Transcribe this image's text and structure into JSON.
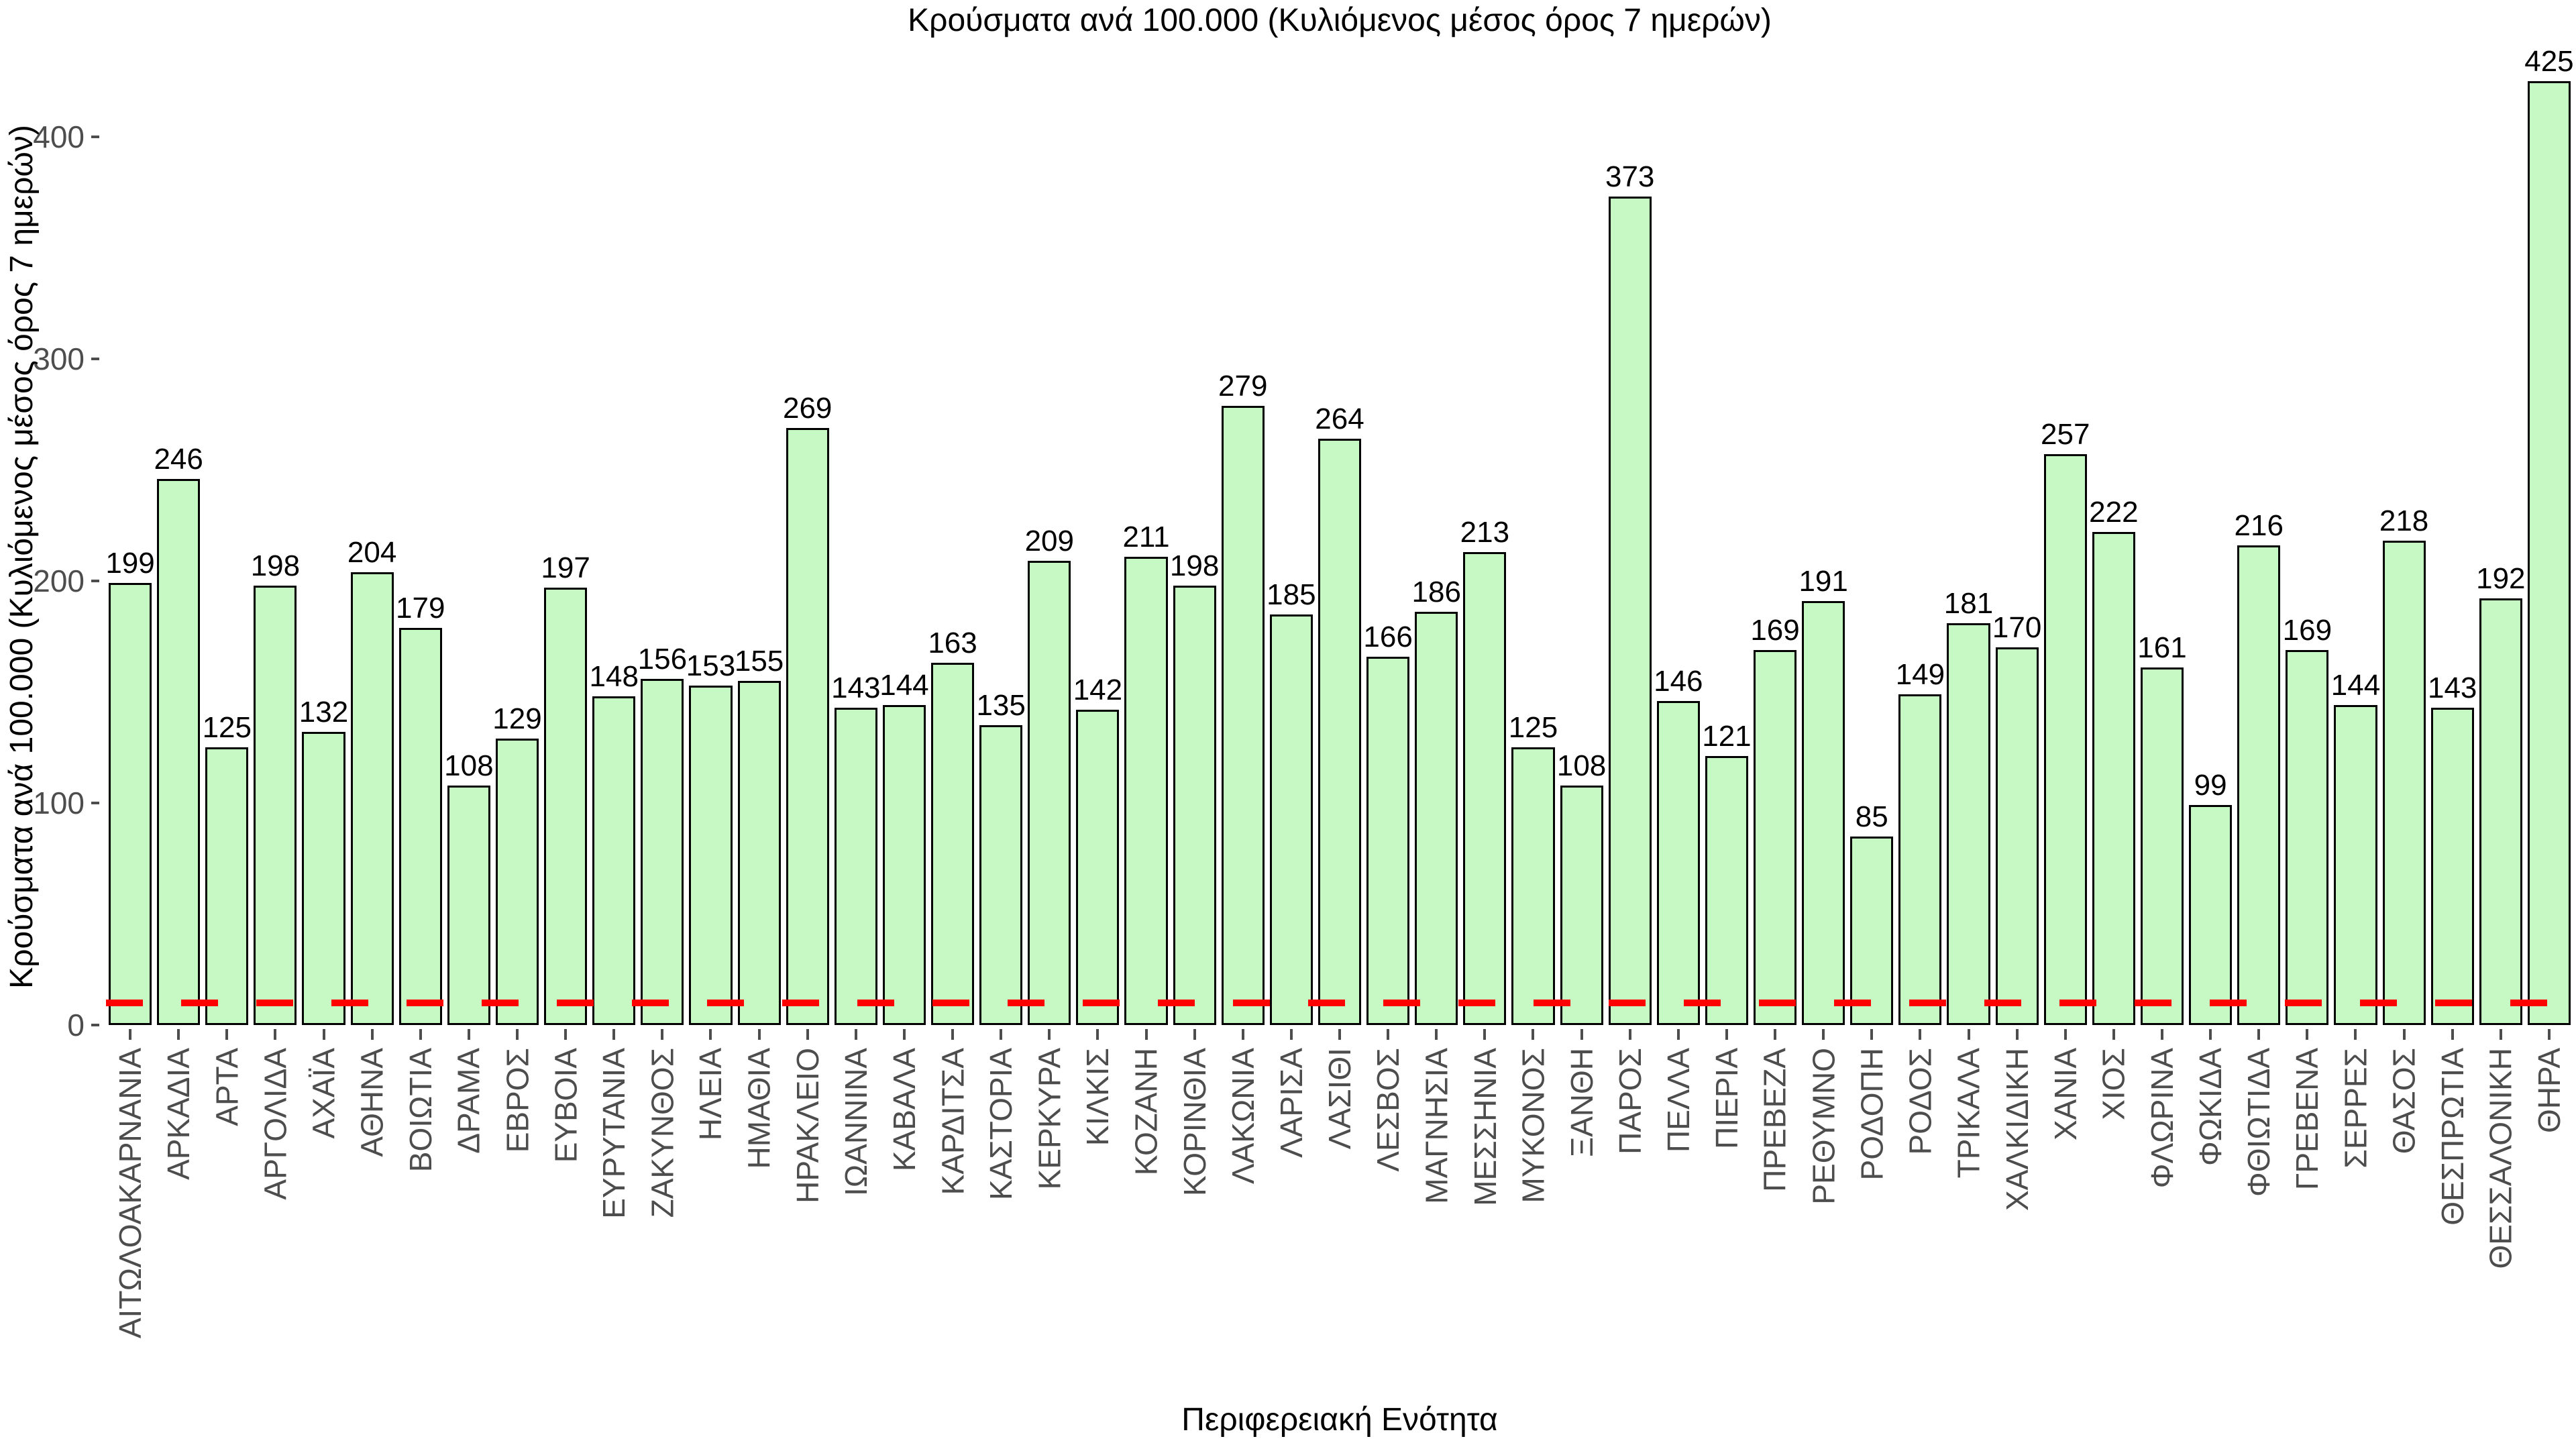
{
  "chart_data": {
    "type": "bar",
    "title": "Κρούσματα ανά 100.000 (Κυλιόμενος μέσος όρος 7 ημερών)",
    "xlabel": "Περιφερειακή Ενότητα",
    "ylabel": "Κρούσματα ανά 100.000 (Κυλιόμενος μέσος όρος 7 ημερών)",
    "categories": [
      "ΑΙΤΩΛΟΑΚΑΡΝΑΝΙΑ",
      "ΑΡΚΑΔΙΑ",
      "ΑΡΤΑ",
      "ΑΡΓΟΛΙΔΑ",
      "ΑΧΑΪΑ",
      "ΑΘΗΝΑ",
      "ΒΟΙΩΤΙΑ",
      "ΔΡΑΜΑ",
      "ΕΒΡΟΣ",
      "ΕΥΒΟΙΑ",
      "ΕΥΡΥΤΑΝΙΑ",
      "ΖΑΚΥΝΘΟΣ",
      "ΗΛΕΙΑ",
      "ΗΜΑΘΙΑ",
      "ΗΡΑΚΛΕΙΟ",
      "ΙΩΑΝΝΙΝΑ",
      "ΚΑΒΑΛΑ",
      "ΚΑΡΔΙΤΣΑ",
      "ΚΑΣΤΟΡΙΑ",
      "ΚΕΡΚΥΡΑ",
      "ΚΙΛΚΙΣ",
      "ΚΟΖΑΝΗ",
      "ΚΟΡΙΝΘΙΑ",
      "ΛΑΚΩΝΙΑ",
      "ΛΑΡΙΣΑ",
      "ΛΑΣΙΘΙ",
      "ΛΕΣΒΟΣ",
      "ΜΑΓΝΗΣΙΑ",
      "ΜΕΣΣΗΝΙΑ",
      "ΜΥΚΟΝΟΣ",
      "ΞΑΝΘΗ",
      "ΠΑΡΟΣ",
      "ΠΕΛΛΑ",
      "ΠΙΕΡΙΑ",
      "ΠΡΕΒΕΖΑ",
      "ΡΕΘΥΜΝΟ",
      "ΡΟΔΟΠΗ",
      "ΡΟΔΟΣ",
      "ΤΡΙΚΑΛΑ",
      "ΧΑΛΚΙΔΙΚΗ",
      "ΧΑΝΙΑ",
      "ΧΙΟΣ",
      "ΦΛΩΡΙΝΑ",
      "ΦΩΚΙΔΑ",
      "ΦΘΙΩΤΙΔΑ",
      "ΓΡΕΒΕΝΑ",
      "ΣΕΡΡΕΣ",
      "ΘΑΣΟΣ",
      "ΘΕΣΠΡΩΤΙΑ",
      "ΘΕΣΣΑΛΟΝΙΚΗ",
      "ΘΗΡΑ"
    ],
    "values": [
      199,
      246,
      125,
      198,
      132,
      204,
      179,
      108,
      129,
      197,
      148,
      156,
      153,
      155,
      269,
      143,
      144,
      163,
      135,
      209,
      142,
      211,
      198,
      279,
      185,
      264,
      166,
      186,
      213,
      125,
      108,
      373,
      146,
      121,
      169,
      191,
      85,
      149,
      181,
      170,
      257,
      222,
      161,
      99,
      216,
      169,
      144,
      218,
      143,
      192,
      425
    ],
    "yticks": [
      0,
      100,
      200,
      300,
      400
    ],
    "ylim": [
      0,
      434
    ],
    "grid": false,
    "legend": "none",
    "bar_fill_color": "#C7F9C4",
    "bar_edge_color": "#000000",
    "value_label_color": "#000000",
    "tick_label_color": "#4d4d4d",
    "threshold_line": {
      "value": 10,
      "color": "#FF0000",
      "style": "dashed"
    }
  }
}
